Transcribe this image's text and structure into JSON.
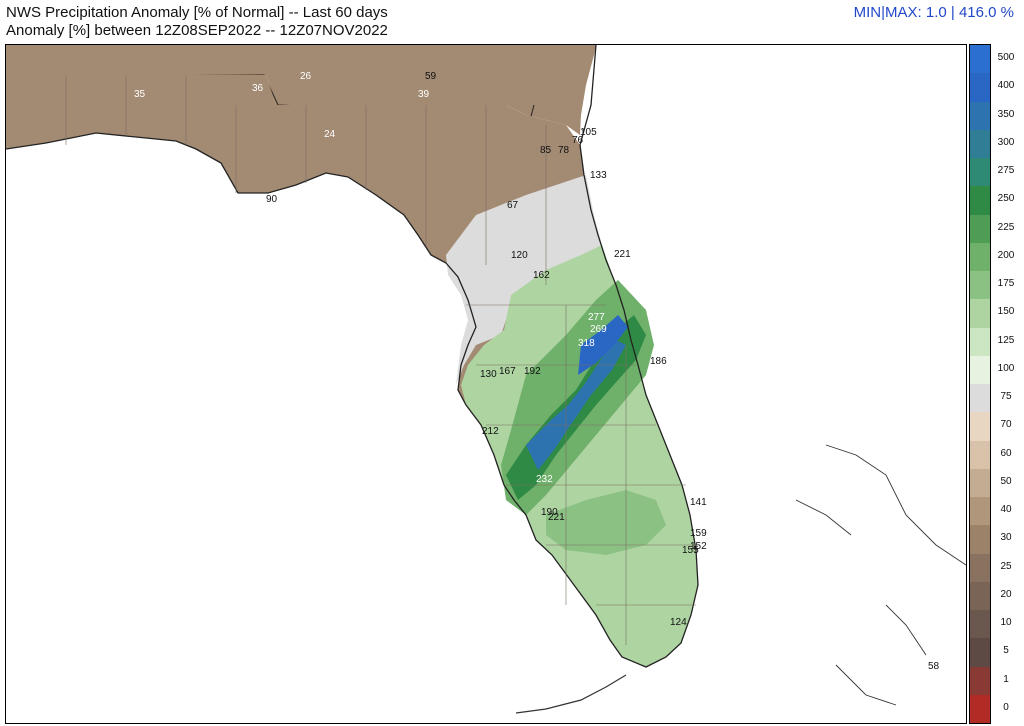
{
  "header": {
    "title_line1": "NWS Precipitation Anomaly [% of Normal] -- Last 60 days",
    "title_line2": "Anomaly [%] between 12Z08SEP2022 -- 12Z07NOV2022",
    "minmax": "MIN|MAX: 1.0 | 416.0 %"
  },
  "colors": {
    "water": "#ffffff",
    "coast": "#333333",
    "county_lines": "#7a6e62",
    "accent_text": "#2248c8"
  },
  "legend": {
    "levels": [
      {
        "label": "500",
        "color": "#2b6fd1"
      },
      {
        "label": "400",
        "color": "#2a67c4"
      },
      {
        "label": "350",
        "color": "#2c73b0"
      },
      {
        "label": "300",
        "color": "#2f7e96"
      },
      {
        "label": "275",
        "color": "#2e8a74"
      },
      {
        "label": "250",
        "color": "#2f8a45"
      },
      {
        "label": "225",
        "color": "#4f9d55"
      },
      {
        "label": "200",
        "color": "#6fb06a"
      },
      {
        "label": "175",
        "color": "#8cc184"
      },
      {
        "label": "150",
        "color": "#aed4a2"
      },
      {
        "label": "125",
        "color": "#cce6c2"
      },
      {
        "label": "100",
        "color": "#e7f3e0"
      },
      {
        "label": "75",
        "color": "#dcdcdc"
      },
      {
        "label": "70",
        "color": "#e9d6c2"
      },
      {
        "label": "60",
        "color": "#d8c2aa"
      },
      {
        "label": "50",
        "color": "#c4ac92"
      },
      {
        "label": "40",
        "color": "#b0977c"
      },
      {
        "label": "30",
        "color": "#9c8268"
      },
      {
        "label": "25",
        "color": "#8a7260"
      },
      {
        "label": "20",
        "color": "#7a6456"
      },
      {
        "label": "10",
        "color": "#6a584e"
      },
      {
        "label": "5",
        "color": "#5e4a44"
      },
      {
        "label": "1",
        "color": "#8a3a34"
      },
      {
        "label": "0",
        "color": "#b02c24"
      }
    ]
  },
  "stations": [
    {
      "label": "35",
      "shade": "light"
    },
    {
      "label": "36",
      "shade": "light"
    },
    {
      "label": "26",
      "shade": "light"
    },
    {
      "label": "59",
      "shade": "dark"
    },
    {
      "label": "39",
      "shade": "light"
    },
    {
      "label": "24",
      "shade": "light"
    },
    {
      "label": "105",
      "shade": "dark"
    },
    {
      "label": "76",
      "shade": "dark"
    },
    {
      "label": "85",
      "shade": "dark"
    },
    {
      "label": "78",
      "shade": "dark"
    },
    {
      "label": "133",
      "shade": "dark"
    },
    {
      "label": "90",
      "shade": "dark"
    },
    {
      "label": "67",
      "shade": "dark"
    },
    {
      "label": "120",
      "shade": "dark"
    },
    {
      "label": "221",
      "shade": "dark"
    },
    {
      "label": "162",
      "shade": "dark"
    },
    {
      "label": "277",
      "shade": "light"
    },
    {
      "label": "269",
      "shade": "light"
    },
    {
      "label": "318",
      "shade": "light"
    },
    {
      "label": "186",
      "shade": "dark"
    },
    {
      "label": "130",
      "shade": "dark"
    },
    {
      "label": "167",
      "shade": "dark"
    },
    {
      "label": "192",
      "shade": "dark"
    },
    {
      "label": "212",
      "shade": "dark"
    },
    {
      "label": "232",
      "shade": "light"
    },
    {
      "label": "141",
      "shade": "dark"
    },
    {
      "label": "190",
      "shade": "dark"
    },
    {
      "label": "221",
      "shade": "dark"
    },
    {
      "label": "159",
      "shade": "dark"
    },
    {
      "label": "152",
      "shade": "dark"
    },
    {
      "label": "155",
      "shade": "dark"
    },
    {
      "label": "124",
      "shade": "dark"
    },
    {
      "label": "58",
      "shade": "dark"
    }
  ]
}
